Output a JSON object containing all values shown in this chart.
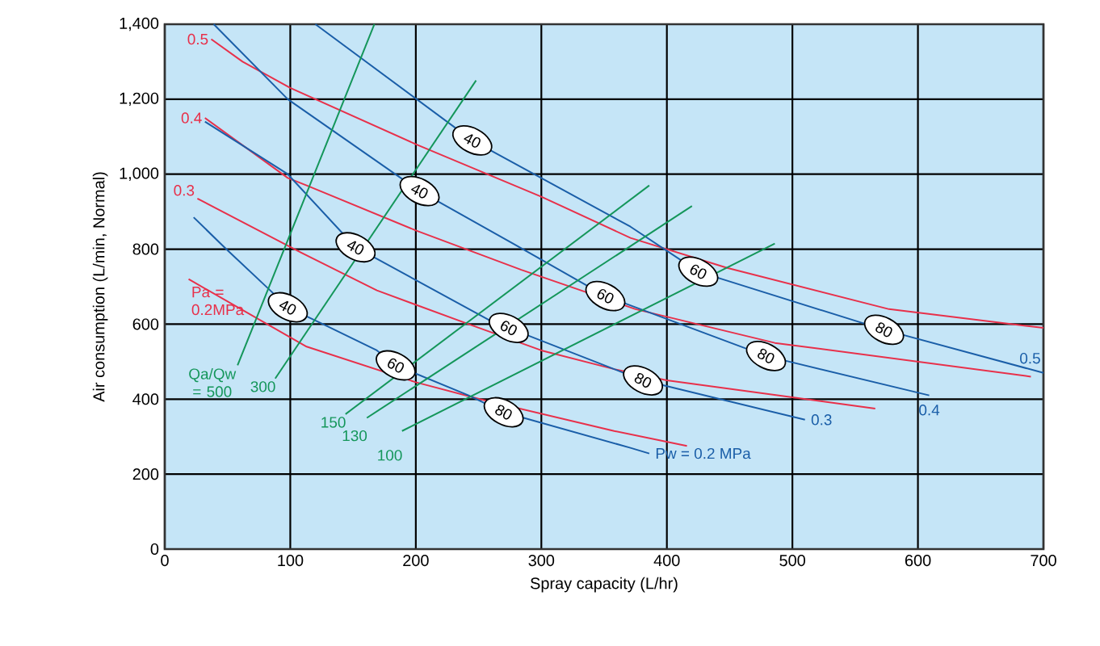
{
  "chart_data": {
    "type": "line",
    "xlabel": "Spray capacity (L/hr)",
    "ylabel": "Air consumption (L/min, Normal)",
    "xlim": [
      0,
      700
    ],
    "ylim": [
      0,
      1400
    ],
    "xticks": [
      0,
      100,
      200,
      300,
      400,
      500,
      600,
      700
    ],
    "yticks": [
      0,
      200,
      400,
      600,
      800,
      {
        "value": 1000,
        "label": "1,000"
      },
      {
        "value": 1200,
        "label": "1,200"
      },
      {
        "value": 1400,
        "label": "1,400"
      }
    ],
    "grid": true,
    "series": [
      {
        "name": "0.5",
        "color": "#e8304a",
        "x": [
          37,
          62,
          100,
          200,
          300,
          371,
          448,
          577,
          700
        ],
        "values": [
          1360,
          1300,
          1230,
          1080,
          940,
          830,
          750,
          640,
          590
        ]
      },
      {
        "name": "0.4",
        "color": "#e8304a",
        "x": [
          32,
          98,
          113,
          200,
          284,
          375,
          486,
          690
        ],
        "values": [
          1150,
          990,
          970,
          850,
          745,
          640,
          550,
          460
        ]
      },
      {
        "name": "0.3",
        "color": "#e8304a",
        "x": [
          26,
          109,
          169,
          242,
          300,
          358,
          400,
          566
        ],
        "values": [
          935,
          790,
          690,
          600,
          530,
          480,
          450,
          375
        ]
      },
      {
        "name": "Pa = 0.2MPa",
        "color": "#e8304a",
        "x": [
          19,
          113,
          200,
          251,
          358,
          416
        ],
        "values": [
          720,
          540,
          445,
          400,
          315,
          275
        ]
      },
      {
        "name": "0.5",
        "color": "#1a5ea8",
        "x": [
          120,
          245,
          371,
          425,
          573,
          700
        ],
        "values": [
          1400,
          1090,
          860,
          740,
          585,
          470
        ]
      },
      {
        "name": "0.4",
        "color": "#1a5ea8",
        "x": [
          39,
          98,
          203,
          280,
          351,
          479,
          609
        ],
        "values": [
          1400,
          1200,
          955,
          810,
          675,
          515,
          410
        ]
      },
      {
        "name": "0.3",
        "color": "#1a5ea8",
        "x": [
          32,
          98,
          152,
          259,
          274,
          381,
          510
        ],
        "values": [
          1140,
          1000,
          805,
          610,
          590,
          450,
          345
        ]
      },
      {
        "name": "Pw = 0.2 MPa",
        "color": "#1a5ea8",
        "x": [
          23,
          49,
          84,
          98,
          126,
          169,
          184,
          242,
          270,
          371,
          386
        ],
        "values": [
          885,
          800,
          690,
          645,
          600,
          530,
          490,
          410,
          365,
          270,
          255
        ]
      },
      {
        "name": "Qa/Qw = 500",
        "color": "#14965a",
        "x": [
          58,
          167
        ],
        "values": [
          490,
          1400
        ]
      },
      {
        "name": "300",
        "color": "#14965a",
        "x": [
          88,
          248
        ],
        "values": [
          455,
          1250
        ]
      },
      {
        "name": "150",
        "color": "#14965a",
        "x": [
          144,
          386
        ],
        "values": [
          360,
          970
        ]
      },
      {
        "name": "130",
        "color": "#14965a",
        "x": [
          161,
          420
        ],
        "values": [
          350,
          915
        ]
      },
      {
        "name": "100",
        "color": "#14965a",
        "x": [
          189,
          486
        ],
        "values": [
          315,
          815
        ]
      }
    ],
    "annotations": [
      {
        "text": "40",
        "x": 98,
        "y": 645
      },
      {
        "text": "60",
        "x": 184,
        "y": 490
      },
      {
        "text": "80",
        "x": 270,
        "y": 365
      },
      {
        "text": "40",
        "x": 152,
        "y": 805
      },
      {
        "text": "60",
        "x": 274,
        "y": 590
      },
      {
        "text": "80",
        "x": 381,
        "y": 450
      },
      {
        "text": "40",
        "x": 203,
        "y": 955
      },
      {
        "text": "60",
        "x": 351,
        "y": 675
      },
      {
        "text": "80",
        "x": 479,
        "y": 515
      },
      {
        "text": "40",
        "x": 245,
        "y": 1090
      },
      {
        "text": "60",
        "x": 425,
        "y": 740
      },
      {
        "text": "80",
        "x": 573,
        "y": 585
      }
    ]
  }
}
